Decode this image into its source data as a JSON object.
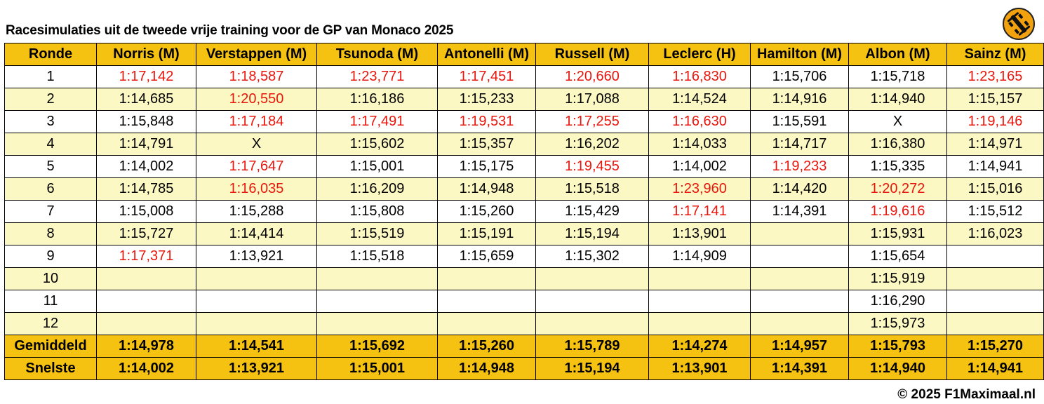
{
  "title": "Racesimulaties uit de tweede vrije training voor de GP van Monaco 2025",
  "logo_icon": "f1-car-icon",
  "colors": {
    "header": "#f5c211",
    "alt_row": "#fcf8c3",
    "slow_lap": "#e8160c"
  },
  "columns": [
    "Ronde",
    "Norris (M)",
    "Verstappen (M)",
    "Tsunoda (M)",
    "Antonelli (M)",
    "Russell (M)",
    "Leclerc (H)",
    "Hamilton (M)",
    "Albon (M)",
    "Sainz (M)"
  ],
  "rows": [
    {
      "lap": "1",
      "cells": [
        {
          "v": "1:17,142",
          "red": true
        },
        {
          "v": "1:18,587",
          "red": true
        },
        {
          "v": "1:23,771",
          "red": true
        },
        {
          "v": "1:17,451",
          "red": true
        },
        {
          "v": "1:20,660",
          "red": true
        },
        {
          "v": "1:16,830",
          "red": true
        },
        {
          "v": "1:15,706",
          "red": false
        },
        {
          "v": "1:15,718",
          "red": false
        },
        {
          "v": "1:23,165",
          "red": true
        }
      ]
    },
    {
      "lap": "2",
      "cells": [
        {
          "v": "1:14,685",
          "red": false
        },
        {
          "v": "1:20,550",
          "red": true
        },
        {
          "v": "1:16,186",
          "red": false
        },
        {
          "v": "1:15,233",
          "red": false
        },
        {
          "v": "1:17,088",
          "red": false
        },
        {
          "v": "1:14,524",
          "red": false
        },
        {
          "v": "1:14,916",
          "red": false
        },
        {
          "v": "1:14,940",
          "red": false
        },
        {
          "v": "1:15,157",
          "red": false
        }
      ]
    },
    {
      "lap": "3",
      "cells": [
        {
          "v": "1:15,848",
          "red": false
        },
        {
          "v": "1:17,184",
          "red": true
        },
        {
          "v": "1:17,491",
          "red": true
        },
        {
          "v": "1:19,531",
          "red": true
        },
        {
          "v": "1:17,255",
          "red": true
        },
        {
          "v": "1:16,630",
          "red": true
        },
        {
          "v": "1:15,591",
          "red": false
        },
        {
          "v": "X",
          "red": false
        },
        {
          "v": "1:19,146",
          "red": true
        }
      ]
    },
    {
      "lap": "4",
      "cells": [
        {
          "v": "1:14,791",
          "red": false
        },
        {
          "v": "X",
          "red": false
        },
        {
          "v": "1:15,602",
          "red": false
        },
        {
          "v": "1:15,357",
          "red": false
        },
        {
          "v": "1:16,202",
          "red": false
        },
        {
          "v": "1:14,033",
          "red": false
        },
        {
          "v": "1:14,717",
          "red": false
        },
        {
          "v": "1:16,380",
          "red": false
        },
        {
          "v": "1:14,971",
          "red": false
        }
      ]
    },
    {
      "lap": "5",
      "cells": [
        {
          "v": "1:14,002",
          "red": false
        },
        {
          "v": "1:17,647",
          "red": true
        },
        {
          "v": "1:15,001",
          "red": false
        },
        {
          "v": "1:15,175",
          "red": false
        },
        {
          "v": "1:19,455",
          "red": true
        },
        {
          "v": "1:14,002",
          "red": false
        },
        {
          "v": "1:19,233",
          "red": true
        },
        {
          "v": "1:15,335",
          "red": false
        },
        {
          "v": "1:14,941",
          "red": false
        }
      ]
    },
    {
      "lap": "6",
      "cells": [
        {
          "v": "1:14,785",
          "red": false
        },
        {
          "v": "1:16,035",
          "red": true
        },
        {
          "v": "1:16,209",
          "red": false
        },
        {
          "v": "1:14,948",
          "red": false
        },
        {
          "v": "1:15,518",
          "red": false
        },
        {
          "v": "1:23,960",
          "red": true
        },
        {
          "v": "1:14,420",
          "red": false
        },
        {
          "v": "1:20,272",
          "red": true
        },
        {
          "v": "1:15,016",
          "red": false
        }
      ]
    },
    {
      "lap": "7",
      "cells": [
        {
          "v": "1:15,008",
          "red": false
        },
        {
          "v": "1:15,288",
          "red": false
        },
        {
          "v": "1:15,808",
          "red": false
        },
        {
          "v": "1:15,260",
          "red": false
        },
        {
          "v": "1:15,429",
          "red": false
        },
        {
          "v": "1:17,141",
          "red": true
        },
        {
          "v": "1:14,391",
          "red": false
        },
        {
          "v": "1:19,616",
          "red": true
        },
        {
          "v": "1:15,512",
          "red": false
        }
      ]
    },
    {
      "lap": "8",
      "cells": [
        {
          "v": "1:15,727",
          "red": false
        },
        {
          "v": "1:14,414",
          "red": false
        },
        {
          "v": "1:15,519",
          "red": false
        },
        {
          "v": "1:15,191",
          "red": false
        },
        {
          "v": "1:15,194",
          "red": false
        },
        {
          "v": "1:13,901",
          "red": false
        },
        {
          "v": "",
          "red": false
        },
        {
          "v": "1:15,931",
          "red": false
        },
        {
          "v": "1:16,023",
          "red": false
        }
      ]
    },
    {
      "lap": "9",
      "cells": [
        {
          "v": "1:17,371",
          "red": true
        },
        {
          "v": "1:13,921",
          "red": false
        },
        {
          "v": "1:15,518",
          "red": false
        },
        {
          "v": "1:15,659",
          "red": false
        },
        {
          "v": "1:15,302",
          "red": false
        },
        {
          "v": "1:14,909",
          "red": false
        },
        {
          "v": "",
          "red": false
        },
        {
          "v": "1:15,654",
          "red": false
        },
        {
          "v": "",
          "red": false
        }
      ]
    },
    {
      "lap": "10",
      "cells": [
        {
          "v": "",
          "red": false
        },
        {
          "v": "",
          "red": false
        },
        {
          "v": "",
          "red": false
        },
        {
          "v": "",
          "red": false
        },
        {
          "v": "",
          "red": false
        },
        {
          "v": "",
          "red": false
        },
        {
          "v": "",
          "red": false
        },
        {
          "v": "1:15,919",
          "red": false
        },
        {
          "v": "",
          "red": false
        }
      ]
    },
    {
      "lap": "11",
      "cells": [
        {
          "v": "",
          "red": false
        },
        {
          "v": "",
          "red": false
        },
        {
          "v": "",
          "red": false
        },
        {
          "v": "",
          "red": false
        },
        {
          "v": "",
          "red": false
        },
        {
          "v": "",
          "red": false
        },
        {
          "v": "",
          "red": false
        },
        {
          "v": "1:16,290",
          "red": false
        },
        {
          "v": "",
          "red": false
        }
      ]
    },
    {
      "lap": "12",
      "cells": [
        {
          "v": "",
          "red": false
        },
        {
          "v": "",
          "red": false
        },
        {
          "v": "",
          "red": false
        },
        {
          "v": "",
          "red": false
        },
        {
          "v": "",
          "red": false
        },
        {
          "v": "",
          "red": false
        },
        {
          "v": "",
          "red": false
        },
        {
          "v": "1:15,973",
          "red": false
        },
        {
          "v": "",
          "red": false
        }
      ]
    }
  ],
  "summary": [
    {
      "label": "Gemiddeld",
      "values": [
        "1:14,978",
        "1:14,541",
        "1:15,692",
        "1:15,260",
        "1:15,789",
        "1:14,274",
        "1:14,957",
        "1:15,793",
        "1:15,270"
      ]
    },
    {
      "label": "Snelste",
      "values": [
        "1:14,002",
        "1:13,921",
        "1:15,001",
        "1:14,948",
        "1:15,194",
        "1:13,901",
        "1:14,391",
        "1:14,940",
        "1:14,941"
      ]
    }
  ],
  "footer": "© 2025 F1Maximaal.nl"
}
